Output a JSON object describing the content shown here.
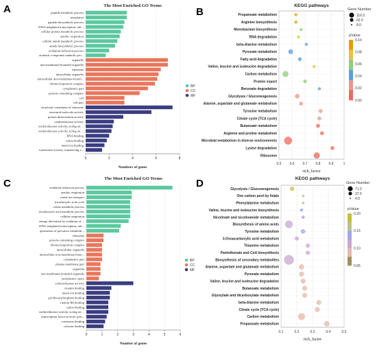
{
  "panels": [
    {
      "letter": "A"
    },
    {
      "letter": "B"
    },
    {
      "letter": "C"
    },
    {
      "letter": "D"
    }
  ],
  "colors": {
    "BP": "#5cc8a0",
    "CC": "#e8765c",
    "MF": "#3a3d80",
    "pvalue_B": [
      "#e1a100",
      "#e8c43a",
      "#8fcf7a",
      "#5fa0d8",
      "#e59a8e",
      "#ee6b5e"
    ],
    "pvalue_D": [
      "#c7bf3a",
      "#b9c48a",
      "#a3a6e8",
      "#c8a7d0",
      "#e5b8a8",
      "#9f9360"
    ]
  },
  "chart_data": [
    {
      "type": "bar",
      "panel": "A",
      "title": "The Most Enriched GO Terms",
      "xlabel": "Numbers of genes",
      "xlim": [
        0,
        8
      ],
      "xticks": [
        0,
        2,
        4,
        6,
        8
      ],
      "legend": [
        "BP",
        "CC",
        "MF"
      ],
      "legend_position": "right",
      "categories": [
        "peptide metabolic process",
        "translation",
        "peptide biosynthetic process",
        "DNA-templated transcription, init...",
        "cellular protein metabolic process",
        "aerobic respiration",
        "cellular amide metabolic process",
        "amide biosynthetic process",
        "oxidation-reduction process",
        "aromatic compound catabolic pro...",
        "organelle",
        "non-membrane-bounded organelle",
        "ribosome",
        "intracellular organelle",
        "intracellular non-membrane-bound...",
        "ribonucleoprotein complex",
        "cytoplasmic part",
        "protein-containing complex",
        "cell",
        "cell part",
        "structural constituent of ribosome",
        "structural molecule activity",
        "protein dimerization activity",
        "oxidoreductase activity",
        "oxidoreductase activity, acting on ...",
        "oxidoreductase activity, acting on ...",
        "RNA binding",
        "cation binding",
        "metal ion binding",
        "transferase activity, transferring a..."
      ],
      "groups": [
        "BP",
        "BP",
        "BP",
        "BP",
        "BP",
        "BP",
        "BP",
        "BP",
        "BP",
        "BP",
        "CC",
        "CC",
        "CC",
        "CC",
        "CC",
        "CC",
        "CC",
        "CC",
        "CC",
        "CC",
        "MF",
        "MF",
        "MF",
        "MF",
        "MF",
        "MF",
        "MF",
        "MF",
        "MF",
        "MF"
      ],
      "values": [
        3.5,
        3.5,
        3.3,
        3.2,
        3.0,
        2.9,
        2.7,
        2.5,
        2.0,
        1.7,
        7.0,
        7.0,
        6.4,
        6.2,
        6.1,
        5.9,
        5.3,
        4.6,
        3.3,
        3.3,
        7.4,
        5.6,
        3.2,
        2.4,
        2.3,
        2.2,
        2.0,
        1.8,
        1.6,
        1.4
      ]
    },
    {
      "type": "scatter",
      "panel": "B",
      "title": "KEGG pathways",
      "xlabel": "rich_factor",
      "xlim": [
        0.5,
        1.0
      ],
      "xticks": [
        0.5,
        0.6,
        0.7,
        0.8,
        0.9,
        1.0
      ],
      "size_legend_title": "Gene Number",
      "size_legend": [
        116.0,
        62.0,
        8.0
      ],
      "color_legend_title": "pValue",
      "color_ticks": [
        "0.10",
        "0.08",
        "0.06",
        "0.04",
        "0.02",
        "0.00"
      ],
      "categories": [
        "Propanoate metabolism",
        "Arginine biosynthesis",
        "Monobactam biosynthesis",
        "RNA degradation",
        "beta-Alanine metabolism",
        "Pyruvate metabolism",
        "Fatty acid degradation",
        "Valine, leucine and isoleucine degradation",
        "Carbon metabolism",
        "Protein export",
        "Benzoate degradation",
        "Glycolysis / Gluconeogenesis",
        "Alanine, aspartate and glutamate metabolism",
        "Tyrosine metabolism",
        "Citrate cycle (TCA cycle)",
        "Butanoate metabolism",
        "Arginine and proline metabolism",
        "Microbial metabolism in diverse environments",
        "Lysine degradation",
        "Ribosome"
      ],
      "x": [
        0.63,
        0.63,
        0.67,
        0.65,
        0.71,
        0.59,
        0.66,
        0.77,
        0.55,
        0.7,
        0.81,
        0.64,
        0.67,
        0.82,
        0.81,
        0.8,
        0.83,
        0.57,
        0.91,
        0.79
      ],
      "size": [
        8,
        8,
        8,
        8,
        8,
        22,
        14,
        8,
        34,
        12,
        8,
        20,
        14,
        14,
        14,
        14,
        14,
        62,
        14,
        38
      ],
      "pvalue": [
        0.09,
        0.09,
        0.06,
        0.07,
        0.05,
        0.05,
        0.05,
        0.07,
        0.06,
        0.06,
        0.05,
        0.03,
        0.02,
        0.02,
        0.02,
        0.01,
        0.01,
        0.01,
        0.01,
        0.01
      ]
    },
    {
      "type": "bar",
      "panel": "C",
      "title": "The Most Enriched GO Terms",
      "xlabel": "Number of genes",
      "xlim": [
        0,
        6
      ],
      "xticks": [
        0,
        1,
        2,
        3,
        4,
        5,
        6
      ],
      "legend": [
        "BP",
        "CC",
        "MF"
      ],
      "legend_position": "right",
      "categories": [
        "oxidation-reduction process",
        "aerobic respiration",
        "metal ion transport",
        "tricarboxylic acid cycle",
        "citrate metabolic process",
        "tricarboxylic acid metabolic process",
        "cellular respiration",
        "energy derivation by oxidation of ...",
        "DNA-templated transcription, init...",
        "generation of precursor metabolit...",
        "ribosome",
        "protein-containing complex",
        "ribonucleoprotein complex",
        "intracellular organelle",
        "intracellular non-membrane-boun...",
        "cytoplasmic part",
        "plasma membrane part",
        "organelle",
        "non-membrane-bounded organelle",
        "periplasmic space",
        "oxidoreductase activity",
        "vitamin binding",
        "metal ion binding",
        "pyridoxal phosphate binding",
        "vitamin B6 binding",
        "cation binding",
        "oxidoreductase activity, acting on ...",
        "transcription factor activity, prot...",
        "coenzyme binding",
        "cofactor binding"
      ],
      "groups": [
        "BP",
        "BP",
        "BP",
        "BP",
        "BP",
        "BP",
        "BP",
        "BP",
        "BP",
        "BP",
        "CC",
        "CC",
        "CC",
        "CC",
        "CC",
        "CC",
        "CC",
        "CC",
        "CC",
        "CC",
        "MF",
        "MF",
        "MF",
        "MF",
        "MF",
        "MF",
        "MF",
        "MF",
        "MF",
        "MF"
      ],
      "values": [
        5.5,
        2.9,
        2.9,
        2.8,
        2.8,
        2.8,
        2.8,
        2.7,
        2.2,
        2.1,
        1.1,
        1.1,
        1.0,
        1.0,
        1.0,
        1.0,
        0.9,
        0.9,
        0.9,
        0.8,
        3.0,
        1.6,
        1.5,
        1.5,
        1.4,
        1.4,
        1.4,
        1.3,
        1.2,
        1.1
      ]
    },
    {
      "type": "scatter",
      "panel": "D",
      "title": "KEGG pathways",
      "xlabel": "rich_factor",
      "xlim": [
        0.1,
        0.5
      ],
      "xticks": [
        0.1,
        0.2,
        0.3,
        0.4,
        0.5
      ],
      "size_legend_title": "Gene Number",
      "size_legend": [
        71.0,
        37.5,
        4.0
      ],
      "color_legend_title": "pValue",
      "color_ticks": [
        "0.20",
        "0.15",
        "0.10",
        "0.05"
      ],
      "categories": [
        "Glycolysis / Gluconeogenesis",
        "One carbon pool by folate",
        "Phenylalanine metabolism",
        "Valine, leucine and isoleucine biosynthesis",
        "Nicotinate and nicotinamide metabolism",
        "Biosynthesis of amino acids",
        "Tyrosine metabolism",
        "3-Oxoacarboxylic acid metabolism",
        "Thiamine metabolism",
        "Pantothenate and CoA biosynthesis",
        "Biosynthesis of secondary metabolites",
        "Alanine, aspartate and glutamate metabolism",
        "Pyruvate metabolism",
        "Valine, leucine and isoleucine degradation",
        "Butanoate metabolism",
        "Glyoxylate and dicarboxylate metabolism",
        "beta-Alanine metabolism",
        "Citrate cycle (TCA cycle)",
        "Carbon metabolism",
        "Propanoate metabolism"
      ],
      "x": [
        0.17,
        0.24,
        0.24,
        0.23,
        0.24,
        0.15,
        0.24,
        0.2,
        0.27,
        0.27,
        0.15,
        0.23,
        0.23,
        0.24,
        0.25,
        0.25,
        0.34,
        0.33,
        0.23,
        0.39
      ],
      "size": [
        10,
        4,
        4,
        6,
        6,
        36,
        12,
        10,
        10,
        10,
        60,
        16,
        14,
        14,
        14,
        14,
        14,
        14,
        30,
        18
      ],
      "pvalue": [
        0.17,
        0.14,
        0.15,
        0.12,
        0.12,
        0.1,
        0.11,
        0.09,
        0.1,
        0.09,
        0.07,
        0.06,
        0.06,
        0.06,
        0.05,
        0.05,
        0.06,
        0.05,
        0.04,
        0.04
      ]
    }
  ]
}
